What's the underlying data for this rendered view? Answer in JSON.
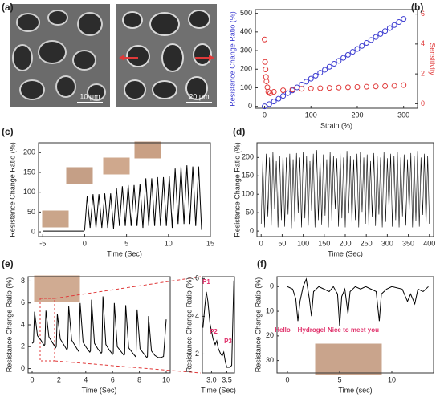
{
  "figure_a": {
    "panel": "(a)",
    "scale_bars": [
      "10 μm",
      "20 μm"
    ]
  },
  "chart_data": [
    {
      "type": "scatter",
      "panel": "(b)",
      "xlabel": "Strain (%)",
      "ylabel": "Resistance Change Ratio (%)",
      "y2label": "Sensitivity",
      "xlim": [
        -20,
        330
      ],
      "xticks": [
        0,
        100,
        200,
        300
      ],
      "ylim": [
        -10,
        520
      ],
      "yticks": [
        0,
        100,
        200,
        300,
        400,
        500
      ],
      "y2lim": [
        -0.3,
        6.3
      ],
      "y2ticks": [
        0,
        2,
        4,
        6
      ],
      "series": [
        {
          "color": "#3a3ad0",
          "x": [
            0,
            10,
            20,
            30,
            40,
            50,
            60,
            70,
            80,
            90,
            100,
            110,
            120,
            130,
            140,
            150,
            160,
            170,
            180,
            190,
            200,
            210,
            220,
            230,
            240,
            250,
            260,
            270,
            280,
            290,
            300
          ],
          "values": [
            0,
            12,
            26,
            41,
            56,
            71,
            86,
            102,
            117,
            133,
            149,
            165,
            181,
            197,
            213,
            229,
            245,
            261,
            277,
            293,
            309,
            325,
            341,
            357,
            373,
            389,
            405,
            421,
            437,
            453,
            470
          ]
        },
        {
          "color": "#e03a3a",
          "axis": "y2",
          "x": [
            0,
            1,
            2,
            3,
            4,
            6,
            8,
            12,
            20,
            40,
            60,
            80,
            100,
            120,
            140,
            160,
            180,
            200,
            220,
            240,
            260,
            280,
            300
          ],
          "values": [
            4.3,
            2.8,
            2.3,
            1.8,
            1.5,
            1.1,
            0.8,
            0.7,
            0.8,
            0.9,
            0.95,
            1,
            1.02,
            1.04,
            1.06,
            1.08,
            1.1,
            1.12,
            1.14,
            1.16,
            1.18,
            1.2,
            1.25
          ]
        }
      ]
    },
    {
      "type": "line",
      "panel": "(c)",
      "xlabel": "Time (Sec)",
      "ylabel": "Resistance Change Ratio (%)",
      "xlim": [
        -5.5,
        15
      ],
      "xticks": [
        -5,
        0,
        5,
        10,
        15
      ],
      "ylim": [
        -12,
        225
      ],
      "yticks": [
        0,
        50,
        100,
        150,
        200
      ],
      "series": [
        {
          "color": "#000000",
          "x": [
            -5,
            -0.1,
            0,
            0.3,
            0.65,
            1.0,
            1.35,
            1.7,
            2.05,
            2.4,
            2.75,
            3.1,
            3.45,
            3.8,
            4.15,
            4.5,
            4.85,
            5.2,
            5.55,
            5.9,
            6.25,
            6.6,
            6.95,
            7.3,
            7.65,
            8.0,
            8.35,
            8.7,
            9.05,
            9.4,
            9.75,
            10.1,
            10.45,
            10.8,
            11.15,
            11.5,
            11.85,
            12.2,
            12.55,
            12.9,
            13.25,
            13.6,
            13.95
          ],
          "values": [
            2,
            2,
            5,
            90,
            10,
            95,
            10,
            95,
            10,
            97,
            10,
            97,
            8,
            110,
            15,
            115,
            15,
            118,
            15,
            118,
            15,
            120,
            10,
            135,
            15,
            135,
            15,
            138,
            15,
            138,
            15,
            140,
            10,
            160,
            20,
            165,
            20,
            168,
            20,
            165,
            15,
            165,
            5
          ]
        }
      ]
    },
    {
      "type": "line",
      "panel": "(d)",
      "xlabel": "Time (Sec)",
      "ylabel": "Resistance Change Ratio (%)",
      "xlim": [
        -10,
        410
      ],
      "xticks": [
        0,
        50,
        100,
        150,
        200,
        250,
        300,
        350,
        400
      ],
      "ylim": [
        -15,
        240
      ],
      "yticks": [
        0,
        50,
        100,
        150,
        200
      ],
      "series": [
        {
          "color": "#000000",
          "x": [
            0,
            4,
            8,
            12,
            16,
            20,
            24,
            28,
            32,
            36,
            40,
            44,
            48,
            52,
            56,
            60,
            64,
            68,
            72,
            76,
            80,
            84,
            88,
            92,
            96,
            100,
            104,
            108,
            112,
            116,
            120,
            124,
            128,
            132,
            136,
            140,
            144,
            148,
            152,
            156,
            160,
            164,
            168,
            172,
            176,
            180,
            184,
            188,
            192,
            196,
            200,
            204,
            208,
            212,
            216,
            220,
            224,
            228,
            232,
            236,
            240,
            244,
            248,
            252,
            256,
            260,
            264,
            268,
            272,
            276,
            280,
            284,
            288,
            292,
            296,
            300,
            304,
            308,
            312,
            316,
            320,
            324,
            328,
            332,
            336,
            340,
            344,
            348,
            352,
            356,
            360,
            364,
            368,
            372,
            376,
            380,
            384,
            388,
            392,
            396,
            400
          ],
          "values": [
            20,
            195,
            10,
            210,
            40,
            200,
            15,
            215,
            60,
            190,
            10,
            205,
            30,
            218,
            12,
            200,
            45,
            210,
            8,
            195,
            25,
            212,
            50,
            200,
            10,
            215,
            35,
            205,
            15,
            190,
            55,
            210,
            10,
            220,
            30,
            200,
            18,
            208,
            42,
            195,
            10,
            215,
            28,
            205,
            60,
            198,
            12,
            212,
            35,
            200,
            10,
            218,
            48,
            205,
            15,
            195,
            30,
            210,
            10,
            215,
            52,
            200,
            20,
            208,
            10,
            190,
            38,
            212,
            14,
            205,
            45,
            200,
            10,
            215,
            25,
            198,
            58,
            210,
            12,
            205,
            30,
            215,
            10,
            200,
            40,
            208,
            15,
            195,
            50,
            212,
            10,
            205,
            28,
            218,
            12,
            200,
            44,
            210,
            10,
            205,
            20
          ]
        }
      ]
    },
    {
      "type": "line",
      "panel": "(e)",
      "xlabel": "Time (Sec)",
      "ylabel": "Resistance Change Ratio (%)",
      "xlim": [
        -0.3,
        10.3
      ],
      "xticks": [
        0,
        2,
        4,
        6,
        8,
        10
      ],
      "ylim": [
        -0.4,
        8.4
      ],
      "yticks": [
        0,
        2,
        4,
        6,
        8
      ],
      "series": [
        {
          "color": "#000000",
          "x": [
            0,
            0.1,
            0.18,
            0.4,
            0.65,
            0.9,
            0.95,
            1.03,
            1.25,
            1.5,
            1.75,
            1.8,
            1.88,
            2.1,
            2.35,
            2.6,
            2.65,
            2.73,
            2.95,
            3.2,
            3.45,
            3.5,
            3.58,
            3.8,
            4.05,
            4.3,
            4.35,
            4.43,
            4.65,
            4.9,
            5.15,
            5.2,
            5.28,
            5.5,
            5.75,
            6.0,
            6.05,
            6.13,
            6.35,
            6.6,
            6.85,
            6.9,
            6.98,
            7.2,
            7.45,
            7.7,
            7.75,
            7.83,
            8.05,
            8.3,
            8.55,
            8.6,
            8.68,
            8.9,
            9.15,
            9.4,
            9.6,
            9.8,
            10.0
          ],
          "values": [
            2.3,
            2.4,
            5.2,
            3.0,
            2.6,
            2.1,
            2.2,
            5.3,
            2.9,
            2.4,
            1.9,
            2.0,
            5.0,
            2.7,
            2.2,
            1.7,
            1.9,
            5.7,
            2.6,
            2.1,
            1.6,
            1.7,
            6.0,
            2.4,
            1.9,
            1.5,
            1.6,
            6.3,
            2.3,
            1.8,
            1.4,
            1.5,
            6.6,
            2.2,
            1.7,
            1.3,
            1.4,
            6.0,
            2.0,
            1.6,
            1.2,
            1.3,
            5.8,
            1.9,
            1.5,
            1.1,
            1.2,
            5.4,
            1.8,
            1.4,
            1.0,
            1.1,
            4.8,
            1.6,
            1.2,
            1.0,
            1.0,
            1.1,
            4.5
          ]
        }
      ]
    },
    {
      "type": "line",
      "xlabel": "Time (Sec)",
      "ylabel": "Resistance Change Ratio (%)",
      "xlim": [
        2.7,
        3.75
      ],
      "xticks": [
        {
          "value": 3,
          "label": "3.0"
        },
        3.5
      ],
      "ylim": [
        1,
        6.1
      ],
      "yticks": [
        2,
        4,
        6
      ],
      "annotations": [
        "P1",
        "P2",
        "P3"
      ],
      "series": [
        {
          "color": "#000000",
          "x": [
            2.72,
            2.78,
            2.83,
            2.88,
            2.95,
            3.05,
            3.12,
            3.17,
            3.22,
            3.3,
            3.35,
            3.4,
            3.45,
            3.5,
            3.6,
            3.66,
            3.7,
            3.73
          ],
          "values": [
            3.4,
            4.5,
            5.3,
            4.8,
            3.6,
            2.8,
            2.5,
            2.7,
            2.3,
            2.0,
            1.9,
            2.1,
            1.6,
            1.3,
            1.3,
            1.4,
            4.0,
            5.9
          ]
        }
      ]
    },
    {
      "type": "line",
      "panel": "(f)",
      "xlabel": "Time (sec)",
      "ylabel": "Resistance Change Ratio (%)",
      "yreverse": true,
      "xlim": [
        -1,
        14
      ],
      "xticks": [
        0,
        5,
        10
      ],
      "ylim": [
        -4,
        35
      ],
      "yticks": [
        0,
        10,
        20,
        30
      ],
      "annotations": [
        "Hello",
        "Hydrogel",
        "Nice to meet you"
      ],
      "series": [
        {
          "color": "#000000",
          "x": [
            0,
            0.5,
            0.8,
            1.0,
            1.2,
            1.5,
            1.8,
            2.1,
            2.3,
            2.5,
            3,
            3.5,
            4,
            4.4,
            4.8,
            5.0,
            5.2,
            5.5,
            5.8,
            6.0,
            6.5,
            7,
            7.5,
            8,
            8.5,
            8.8,
            9.0,
            9.5,
            10,
            11,
            11.5,
            11.8,
            12.2,
            12.5,
            13,
            13.5
          ],
          "values": [
            0,
            1,
            5,
            14,
            6,
            0,
            -3,
            5,
            12,
            2,
            0,
            1,
            2,
            0,
            3,
            16,
            4,
            1,
            11,
            2,
            0,
            1,
            0,
            1,
            2,
            14,
            3,
            1,
            0,
            1,
            6,
            3,
            7,
            1,
            2,
            0
          ]
        }
      ]
    }
  ]
}
